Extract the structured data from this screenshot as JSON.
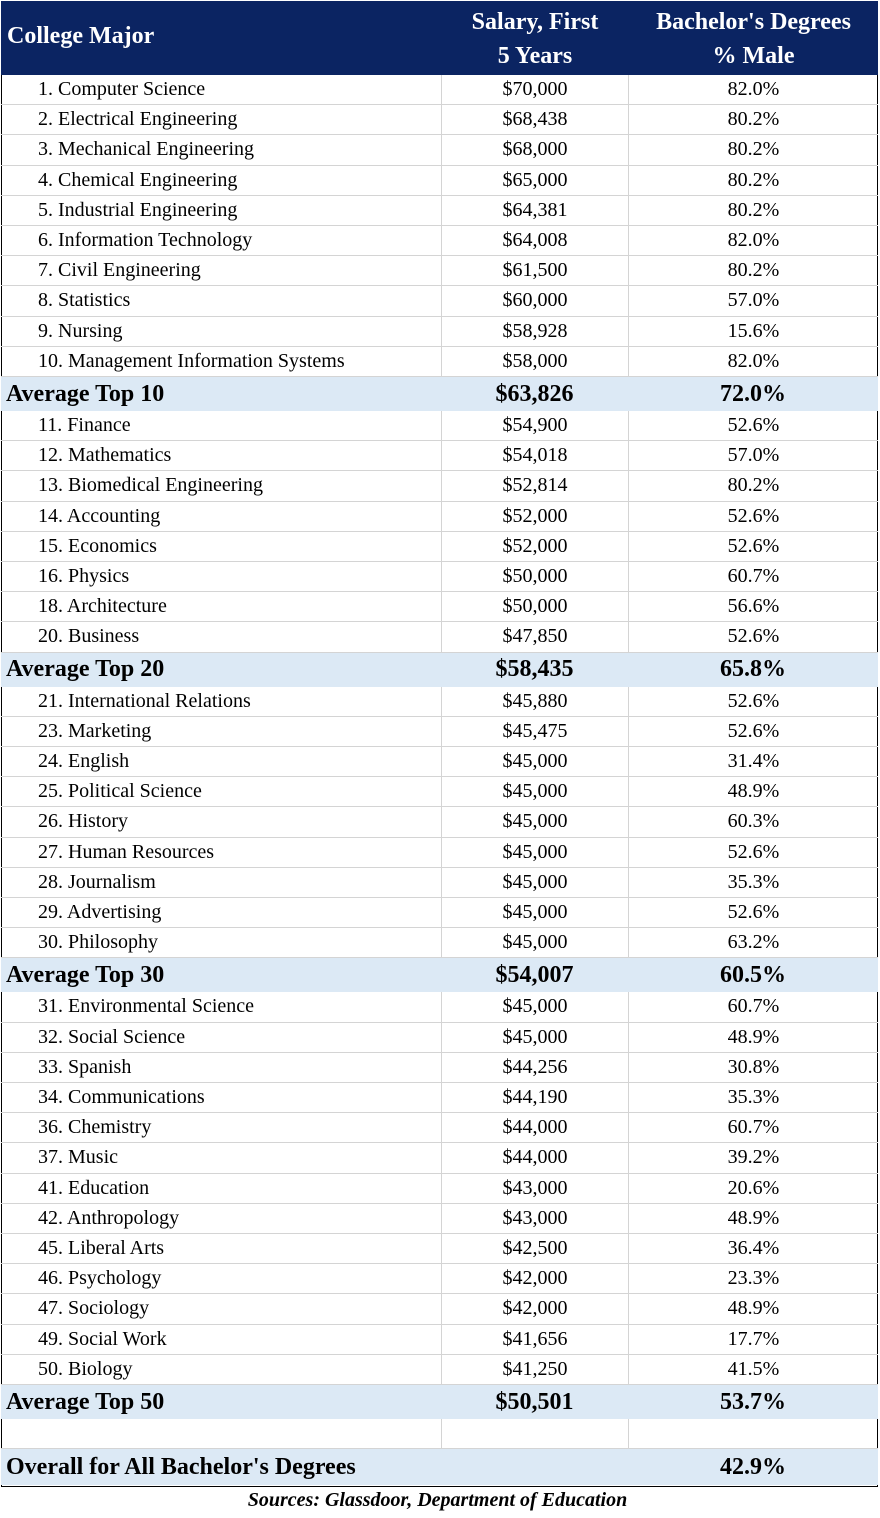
{
  "header": {
    "col1": "College Major",
    "col2_line1": "Salary, First",
    "col2_line2": "5 Years",
    "col3_line1": "Bachelor's Degrees",
    "col3_line2": "% Male"
  },
  "groups": [
    {
      "rows": [
        {
          "major": "1. Computer Science",
          "salary": "$70,000",
          "male": "82.0%"
        },
        {
          "major": "2. Electrical Engineering",
          "salary": "$68,438",
          "male": "80.2%"
        },
        {
          "major": "3. Mechanical Engineering",
          "salary": "$68,000",
          "male": "80.2%"
        },
        {
          "major": "4. Chemical Engineering",
          "salary": "$65,000",
          "male": "80.2%"
        },
        {
          "major": "5. Industrial Engineering",
          "salary": "$64,381",
          "male": "80.2%"
        },
        {
          "major": "6. Information Technology",
          "salary": "$64,008",
          "male": "82.0%"
        },
        {
          "major": "7. Civil Engineering",
          "salary": "$61,500",
          "male": "80.2%"
        },
        {
          "major": "8. Statistics",
          "salary": "$60,000",
          "male": "57.0%"
        },
        {
          "major": "9. Nursing",
          "salary": "$58,928",
          "male": "15.6%"
        },
        {
          "major": "10. Management Information Systems",
          "salary": "$58,000",
          "male": "82.0%"
        }
      ],
      "avg": {
        "label": "Average Top 10",
        "salary": "$63,826",
        "male": "72.0%"
      }
    },
    {
      "rows": [
        {
          "major": "11. Finance",
          "salary": "$54,900",
          "male": "52.6%"
        },
        {
          "major": "12. Mathematics",
          "salary": "$54,018",
          "male": "57.0%"
        },
        {
          "major": "13. Biomedical Engineering",
          "salary": "$52,814",
          "male": "80.2%"
        },
        {
          "major": "14. Accounting",
          "salary": "$52,000",
          "male": "52.6%"
        },
        {
          "major": "15. Economics",
          "salary": "$52,000",
          "male": "52.6%"
        },
        {
          "major": "16. Physics",
          "salary": "$50,000",
          "male": "60.7%"
        },
        {
          "major": "18. Architecture",
          "salary": "$50,000",
          "male": "56.6%"
        },
        {
          "major": "20. Business",
          "salary": "$47,850",
          "male": "52.6%"
        }
      ],
      "avg": {
        "label": "Average Top 20",
        "salary": "$58,435",
        "male": "65.8%"
      }
    },
    {
      "rows": [
        {
          "major": "21. International Relations",
          "salary": "$45,880",
          "male": "52.6%"
        },
        {
          "major": "23. Marketing",
          "salary": "$45,475",
          "male": "52.6%"
        },
        {
          "major": "24. English",
          "salary": "$45,000",
          "male": "31.4%"
        },
        {
          "major": "25. Political Science",
          "salary": "$45,000",
          "male": "48.9%"
        },
        {
          "major": "26. History",
          "salary": "$45,000",
          "male": "60.3%"
        },
        {
          "major": "27. Human Resources",
          "salary": "$45,000",
          "male": "52.6%"
        },
        {
          "major": "28. Journalism",
          "salary": "$45,000",
          "male": "35.3%"
        },
        {
          "major": "29. Advertising",
          "salary": "$45,000",
          "male": "52.6%"
        },
        {
          "major": "30. Philosophy",
          "salary": "$45,000",
          "male": "63.2%"
        }
      ],
      "avg": {
        "label": "Average Top 30",
        "salary": "$54,007",
        "male": "60.5%"
      }
    },
    {
      "rows": [
        {
          "major": "31. Environmental Science",
          "salary": "$45,000",
          "male": "60.7%"
        },
        {
          "major": "32. Social Science",
          "salary": "$45,000",
          "male": "48.9%"
        },
        {
          "major": "33. Spanish",
          "salary": "$44,256",
          "male": "30.8%"
        },
        {
          "major": "34. Communications",
          "salary": "$44,190",
          "male": "35.3%"
        },
        {
          "major": "36. Chemistry",
          "salary": "$44,000",
          "male": "60.7%"
        },
        {
          "major": "37. Music",
          "salary": "$44,000",
          "male": "39.2%"
        },
        {
          "major": "41. Education",
          "salary": "$43,000",
          "male": "20.6%"
        },
        {
          "major": "42. Anthropology",
          "salary": "$43,000",
          "male": "48.9%"
        },
        {
          "major": "45. Liberal Arts",
          "salary": "$42,500",
          "male": "36.4%"
        },
        {
          "major": "46. Psychology",
          "salary": "$42,000",
          "male": "23.3%"
        },
        {
          "major": "47. Sociology",
          "salary": "$42,000",
          "male": "48.9%"
        },
        {
          "major": "49. Social Work",
          "salary": "$41,656",
          "male": "17.7%"
        },
        {
          "major": "50. Biology",
          "salary": "$41,250",
          "male": "41.5%"
        }
      ],
      "avg": {
        "label": "Average Top 50",
        "salary": "$50,501",
        "male": "53.7%"
      }
    }
  ],
  "overall": {
    "label": "Overall for All Bachelor's Degrees",
    "male": "42.9%"
  },
  "source": "Sources: Glassdoor, Department of Education"
}
